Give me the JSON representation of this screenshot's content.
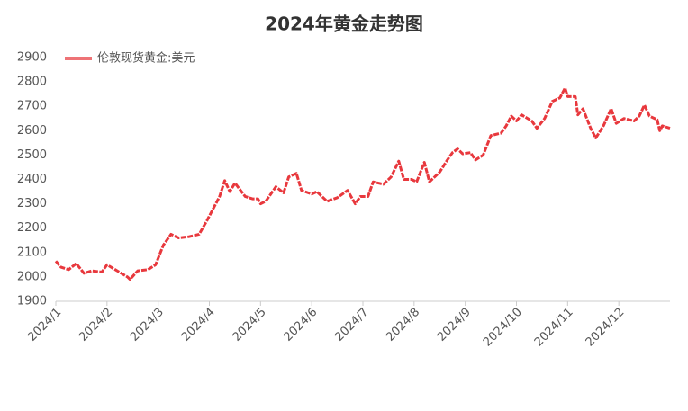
{
  "chart_data": {
    "type": "line",
    "title": "2024年黄金走势图",
    "x": [
      1.0,
      1.1,
      1.25,
      1.4,
      1.55,
      1.7,
      1.9,
      2.0,
      2.2,
      2.4,
      2.45,
      2.6,
      2.8,
      2.95,
      3.1,
      3.25,
      3.4,
      3.6,
      3.8,
      3.95,
      4.1,
      4.2,
      4.3,
      4.4,
      4.5,
      4.7,
      4.85,
      4.95,
      5.0,
      5.1,
      5.3,
      5.45,
      5.55,
      5.7,
      5.8,
      6.0,
      6.1,
      6.3,
      6.5,
      6.7,
      6.85,
      6.95,
      7.1,
      7.2,
      7.4,
      7.55,
      7.7,
      7.8,
      7.95,
      8.05,
      8.2,
      8.3,
      8.5,
      8.65,
      8.75,
      8.85,
      8.95,
      9.1,
      9.2,
      9.35,
      9.5,
      9.7,
      9.8,
      9.9,
      10.0,
      10.1,
      10.3,
      10.4,
      10.55,
      10.7,
      10.85,
      10.95,
      11.0,
      11.15,
      11.2,
      11.3,
      11.45,
      11.55,
      11.7,
      11.85,
      11.95,
      12.1,
      12.3,
      12.4,
      12.5,
      12.6,
      12.75,
      12.8,
      12.85,
      13.0
    ],
    "series": [
      {
        "name": "伦敦现货黄金:美元",
        "color": "#e8383d",
        "values": [
          2065,
          2040,
          2030,
          2055,
          2015,
          2025,
          2020,
          2050,
          2025,
          2000,
          1990,
          2025,
          2030,
          2050,
          2130,
          2175,
          2160,
          2165,
          2175,
          2230,
          2290,
          2330,
          2395,
          2350,
          2385,
          2330,
          2320,
          2320,
          2300,
          2310,
          2370,
          2345,
          2410,
          2425,
          2355,
          2340,
          2350,
          2310,
          2325,
          2355,
          2300,
          2330,
          2330,
          2390,
          2380,
          2410,
          2475,
          2400,
          2400,
          2390,
          2470,
          2390,
          2430,
          2480,
          2510,
          2525,
          2505,
          2510,
          2480,
          2500,
          2580,
          2590,
          2620,
          2660,
          2640,
          2665,
          2640,
          2610,
          2650,
          2720,
          2735,
          2775,
          2740,
          2740,
          2665,
          2690,
          2610,
          2570,
          2620,
          2690,
          2630,
          2650,
          2640,
          2660,
          2705,
          2660,
          2645,
          2600,
          2620,
          2610
        ]
      }
    ],
    "xlim": [
      1,
      13
    ],
    "xticks": [
      {
        "value": 1,
        "label": "2024/1"
      },
      {
        "value": 2,
        "label": "2024/2"
      },
      {
        "value": 3,
        "label": "2024/3"
      },
      {
        "value": 4,
        "label": "2024/4"
      },
      {
        "value": 5,
        "label": "2024/5"
      },
      {
        "value": 6,
        "label": "2024/6"
      },
      {
        "value": 7,
        "label": "2024/7"
      },
      {
        "value": 8,
        "label": "2024/8"
      },
      {
        "value": 9,
        "label": "2024/9"
      },
      {
        "value": 10,
        "label": "2024/10"
      },
      {
        "value": 11,
        "label": "2024/11"
      },
      {
        "value": 12,
        "label": "2024/12"
      }
    ],
    "ylim": [
      1900,
      2900
    ],
    "yticks": [
      1900,
      2000,
      2100,
      2200,
      2300,
      2400,
      2500,
      2600,
      2700,
      2800,
      2900
    ],
    "grid": false,
    "legend": "top-left"
  }
}
